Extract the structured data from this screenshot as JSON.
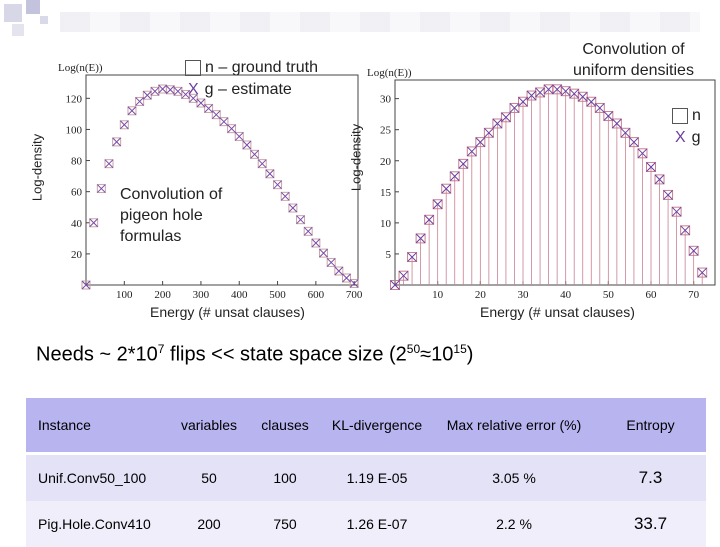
{
  "charts": {
    "left": {
      "ytitle": "Log(n(E))",
      "side_label": "Log-density",
      "xlabel": "Energy (# unsat clauses)",
      "legend_truth": "n – ground truth",
      "legend_est": "g – estimate",
      "note_lines": [
        "Convolution of",
        "pigeon hole",
        "formulas"
      ]
    },
    "right": {
      "ytitle": "Log(n(E))",
      "side_label": "Log-density",
      "xlabel": "Energy (# unsat clauses)",
      "title_lines": [
        "Convolution of",
        "uniform densities"
      ],
      "legend_truth": "n",
      "legend_est": "g"
    }
  },
  "chart_data": [
    {
      "type": "scatter",
      "title": "Convolution of pigeon hole formulas",
      "xlabel": "Energy (# unsat clauses)",
      "ylabel": "Log(n(E))",
      "xlim": [
        0,
        710
      ],
      "ylim": [
        0,
        135
      ],
      "xticks": [
        100,
        200,
        300,
        400,
        500,
        600,
        700
      ],
      "yticks": [
        20,
        40,
        60,
        80,
        100,
        120
      ],
      "series": [
        {
          "name": "n – ground truth",
          "marker": "square",
          "color": "#c9a4a6",
          "x": [
            0,
            20,
            40,
            60,
            80,
            100,
            120,
            140,
            160,
            180,
            200,
            220,
            240,
            260,
            280,
            300,
            320,
            340,
            360,
            380,
            400,
            420,
            440,
            460,
            480,
            500,
            520,
            540,
            560,
            580,
            600,
            620,
            640,
            660,
            680,
            700
          ],
          "y": [
            0,
            40,
            62,
            78,
            92,
            103,
            112,
            118,
            122,
            124.5,
            126,
            125.5,
            124.5,
            122.5,
            120,
            117,
            113.5,
            109.5,
            105,
            100.5,
            95.5,
            90,
            84,
            78,
            71.5,
            64.5,
            57,
            49.5,
            42,
            34.5,
            27,
            20.5,
            14.5,
            9,
            4.5,
            1
          ]
        },
        {
          "name": "g – estimate",
          "marker": "x",
          "color": "#7a4aa8",
          "x": [
            0,
            20,
            40,
            60,
            80,
            100,
            120,
            140,
            160,
            180,
            200,
            220,
            240,
            260,
            280,
            300,
            320,
            340,
            360,
            380,
            400,
            420,
            440,
            460,
            480,
            500,
            520,
            540,
            560,
            580,
            600,
            620,
            640,
            660,
            680,
            700
          ],
          "y": [
            0,
            40,
            62,
            78,
            92,
            103,
            112,
            118,
            122,
            124.5,
            126,
            125.5,
            124.5,
            122.5,
            120,
            117,
            113.5,
            109.5,
            105,
            100.5,
            95.5,
            90,
            84,
            78,
            71.5,
            64.5,
            57,
            49.5,
            42,
            34.5,
            27,
            20.5,
            14.5,
            9,
            4.5,
            1
          ]
        }
      ]
    },
    {
      "type": "scatter",
      "title": "Convolution of uniform densities",
      "xlabel": "Energy (# unsat clauses)",
      "ylabel": "Log(n(E))",
      "xlim": [
        0,
        75
      ],
      "ylim": [
        0,
        33
      ],
      "xticks": [
        10,
        20,
        30,
        40,
        50,
        60,
        70
      ],
      "yticks": [
        5,
        10,
        15,
        20,
        25,
        30
      ],
      "series": [
        {
          "name": "n",
          "marker": "square",
          "color": "#c98090",
          "x": [
            0,
            2,
            4,
            6,
            8,
            10,
            12,
            14,
            16,
            18,
            20,
            22,
            24,
            26,
            28,
            30,
            32,
            34,
            36,
            38,
            40,
            42,
            44,
            46,
            48,
            50,
            52,
            54,
            56,
            58,
            60,
            62,
            64,
            66,
            68,
            70,
            72
          ],
          "y": [
            0,
            1.5,
            4.5,
            7.5,
            10.5,
            13,
            15.5,
            17.5,
            19.5,
            21.5,
            23,
            24.5,
            26,
            27,
            28.5,
            29.5,
            30.5,
            31,
            31.5,
            31.5,
            31.2,
            30.8,
            30.3,
            29.5,
            28.5,
            27.2,
            26,
            24.5,
            23,
            21.2,
            19,
            17,
            14.5,
            11.8,
            8.8,
            5.5,
            2
          ]
        },
        {
          "name": "g",
          "marker": "x",
          "color": "#6b3fa0",
          "x": [
            0,
            2,
            4,
            6,
            8,
            10,
            12,
            14,
            16,
            18,
            20,
            22,
            24,
            26,
            28,
            30,
            32,
            34,
            36,
            38,
            40,
            42,
            44,
            46,
            48,
            50,
            52,
            54,
            56,
            58,
            60,
            62,
            64,
            66,
            68,
            70,
            72
          ],
          "y": [
            0,
            1.5,
            4.5,
            7.5,
            10.5,
            13,
            15.5,
            17.5,
            19.5,
            21.5,
            23,
            24.5,
            26,
            27,
            28.5,
            29.5,
            30.5,
            31,
            31.5,
            31.5,
            31.2,
            30.8,
            30.3,
            29.5,
            28.5,
            27.2,
            26,
            24.5,
            23,
            21.2,
            19,
            17,
            14.5,
            11.8,
            8.8,
            5.5,
            2
          ]
        }
      ]
    },
    {
      "type": "table",
      "columns": [
        "Instance",
        "variables",
        "clauses",
        "KL-divergence",
        "Max relative error (%)",
        "Entropy"
      ],
      "rows": [
        [
          "Unif.Conv50_100",
          "50",
          "100",
          "1.19 E-05",
          "3.05 %",
          "7.3"
        ],
        [
          "Pig.Hole.Conv410",
          "200",
          "750",
          "1.26 E-07",
          "2.2 %",
          "33.7"
        ]
      ]
    }
  ],
  "headline": {
    "pre": "Needs ~ 2*10",
    "exp1": "7",
    "mid": " flips << state space size (2",
    "exp2": "50",
    "approx": "≈10",
    "exp3": "15",
    "post": ")"
  },
  "colors": {
    "header_bg": "#b7b4f0",
    "row1_bg": "#e3e2f7",
    "row2_bg": "#efeefa",
    "curve_square": "#c98090",
    "curve_x": "#6b3fa0"
  }
}
